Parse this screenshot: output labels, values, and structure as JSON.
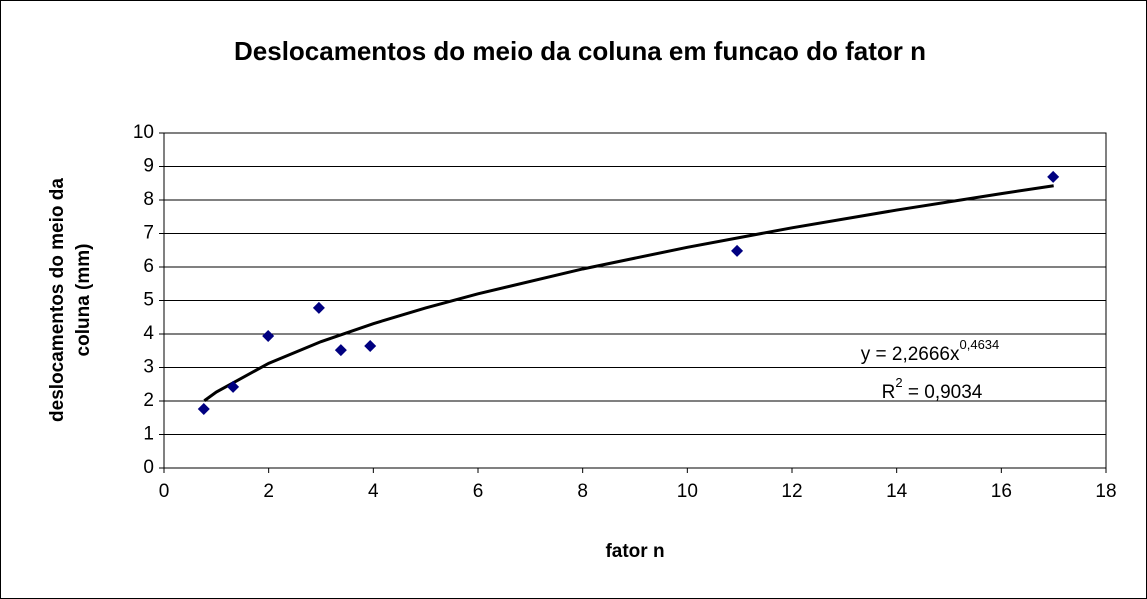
{
  "chart_data": {
    "type": "scatter",
    "title": "Deslocamentos do meio da coluna em funcao do fator n",
    "x_label": "fator n",
    "y_label": [
      "deslocamentos do meio da",
      "coluna (mm)"
    ],
    "series": [
      {
        "color": "#000080",
        "x": [
          0.76,
          1.32,
          1.99,
          2.96,
          3.38,
          3.94,
          10.95,
          16.99
        ],
        "values": [
          1.76,
          2.42,
          3.94,
          4.78,
          3.52,
          3.64,
          6.48,
          8.69
        ]
      }
    ],
    "trendline": {
      "color": "#000000",
      "x": [
        0.77,
        1,
        2,
        3,
        4,
        5,
        6,
        8,
        10,
        12,
        14,
        16,
        17
      ],
      "values": [
        2.008,
        2.2666,
        3.125,
        3.771,
        4.309,
        4.778,
        5.2,
        5.941,
        6.588,
        7.17,
        7.7,
        8.191,
        8.425
      ]
    },
    "equation": {
      "base": "y = 2,2666x",
      "exponent": "0,4634"
    },
    "r_squared": {
      "base": "R",
      "exponent": "2",
      "rest": " = 0,9034"
    },
    "xlim": [
      0,
      18
    ],
    "xticks": [
      0,
      2,
      4,
      6,
      8,
      10,
      12,
      14,
      16,
      18
    ],
    "ylim": [
      0,
      10
    ],
    "yticks": [
      0,
      1,
      2,
      3,
      4,
      5,
      6,
      7,
      8,
      9,
      10
    ],
    "grid": true
  }
}
